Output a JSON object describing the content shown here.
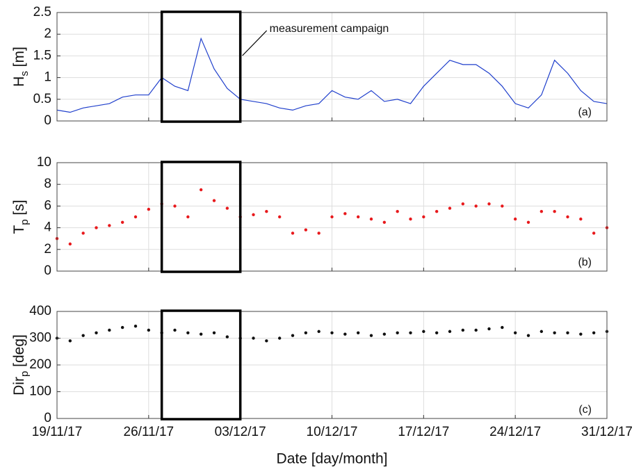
{
  "chart_data": [
    {
      "type": "line",
      "color": "#1f3fcc",
      "grid": true,
      "ylabel": [
        "H",
        "s",
        " [m]"
      ],
      "panel_label": "(a)",
      "annotation": "measurement campaign",
      "highlight": [
        "2017-11-27",
        "2017-12-03"
      ],
      "xlim": [
        "2017-11-19",
        "2017-12-31"
      ],
      "xticks": [
        "2017-11-19",
        "2017-11-26",
        "2017-12-03",
        "2017-12-10",
        "2017-12-17",
        "2017-12-24",
        "2017-12-31"
      ],
      "ylim": [
        0,
        2.5
      ],
      "yticks": [
        0,
        0.5,
        1,
        1.5,
        2,
        2.5
      ],
      "x": [
        "2017-11-19",
        "2017-11-20",
        "2017-11-21",
        "2017-11-22",
        "2017-11-23",
        "2017-11-24",
        "2017-11-25",
        "2017-11-26",
        "2017-11-27",
        "2017-11-28",
        "2017-11-29",
        "2017-11-30",
        "2017-12-01",
        "2017-12-02",
        "2017-12-03",
        "2017-12-04",
        "2017-12-05",
        "2017-12-06",
        "2017-12-07",
        "2017-12-08",
        "2017-12-09",
        "2017-12-10",
        "2017-12-11",
        "2017-12-12",
        "2017-12-13",
        "2017-12-14",
        "2017-12-15",
        "2017-12-16",
        "2017-12-17",
        "2017-12-18",
        "2017-12-19",
        "2017-12-20",
        "2017-12-21",
        "2017-12-22",
        "2017-12-23",
        "2017-12-24",
        "2017-12-25",
        "2017-12-26",
        "2017-12-27",
        "2017-12-28",
        "2017-12-29",
        "2017-12-30",
        "2017-12-31"
      ],
      "values": [
        0.25,
        0.2,
        0.3,
        0.35,
        0.4,
        0.55,
        0.6,
        0.6,
        1.0,
        0.8,
        0.7,
        1.9,
        1.2,
        0.75,
        0.5,
        0.45,
        0.4,
        0.3,
        0.25,
        0.35,
        0.4,
        0.7,
        0.55,
        0.5,
        0.7,
        0.45,
        0.5,
        0.4,
        0.8,
        1.1,
        1.4,
        1.3,
        1.3,
        1.1,
        0.8,
        0.4,
        0.3,
        0.6,
        1.4,
        1.1,
        0.7,
        0.45,
        0.4
      ]
    },
    {
      "type": "scatter",
      "color": "#e8191c",
      "grid": true,
      "ylabel": [
        "T",
        "p",
        " [s]"
      ],
      "panel_label": "(b)",
      "highlight": [
        "2017-11-27",
        "2017-12-03"
      ],
      "xlim": [
        "2017-11-19",
        "2017-12-31"
      ],
      "xticks": [
        "2017-11-19",
        "2017-11-26",
        "2017-12-03",
        "2017-12-10",
        "2017-12-17",
        "2017-12-24",
        "2017-12-31"
      ],
      "ylim": [
        0,
        10
      ],
      "yticks": [
        0,
        2,
        4,
        6,
        8,
        10
      ],
      "x": [
        "2017-11-19",
        "2017-11-20",
        "2017-11-21",
        "2017-11-22",
        "2017-11-23",
        "2017-11-24",
        "2017-11-25",
        "2017-11-26",
        "2017-11-27",
        "2017-11-28",
        "2017-11-29",
        "2017-11-30",
        "2017-12-01",
        "2017-12-02",
        "2017-12-03",
        "2017-12-04",
        "2017-12-05",
        "2017-12-06",
        "2017-12-07",
        "2017-12-08",
        "2017-12-09",
        "2017-12-10",
        "2017-12-11",
        "2017-12-12",
        "2017-12-13",
        "2017-12-14",
        "2017-12-15",
        "2017-12-16",
        "2017-12-17",
        "2017-12-18",
        "2017-12-19",
        "2017-12-20",
        "2017-12-21",
        "2017-12-22",
        "2017-12-23",
        "2017-12-24",
        "2017-12-25",
        "2017-12-26",
        "2017-12-27",
        "2017-12-28",
        "2017-12-29",
        "2017-12-30",
        "2017-12-31"
      ],
      "values": [
        3,
        2.5,
        3.5,
        4,
        4.2,
        4.5,
        5,
        5.7,
        6.2,
        6,
        5,
        7.5,
        6.5,
        5.8,
        5,
        5.2,
        5.5,
        5,
        3.5,
        3.8,
        3.5,
        5,
        5.3,
        5,
        4.8,
        4.5,
        5.5,
        4.8,
        5,
        5.5,
        5.8,
        6.2,
        6,
        6.2,
        6,
        4.8,
        4.5,
        5.5,
        5.5,
        5,
        4.8,
        3.5,
        4
      ]
    },
    {
      "type": "scatter",
      "color": "#111111",
      "grid": true,
      "ylabel": [
        "Dir",
        "p",
        " [deg]"
      ],
      "panel_label": "(c)",
      "xlabel": "Date [day/month]",
      "highlight": [
        "2017-11-27",
        "2017-12-03"
      ],
      "xlim": [
        "2017-11-19",
        "2017-12-31"
      ],
      "xticks": [
        {
          "value": "2017-11-19",
          "label": "19/11/17"
        },
        {
          "value": "2017-11-26",
          "label": "26/11/17"
        },
        {
          "value": "2017-12-03",
          "label": "03/12/17"
        },
        {
          "value": "2017-12-10",
          "label": "10/12/17"
        },
        {
          "value": "2017-12-17",
          "label": "17/12/17"
        },
        {
          "value": "2017-12-24",
          "label": "24/12/17"
        },
        {
          "value": "2017-12-31",
          "label": "31/12/17"
        }
      ],
      "ylim": [
        0,
        400
      ],
      "yticks": [
        0,
        100,
        200,
        300,
        400
      ],
      "x": [
        "2017-11-19",
        "2017-11-20",
        "2017-11-21",
        "2017-11-22",
        "2017-11-23",
        "2017-11-24",
        "2017-11-25",
        "2017-11-26",
        "2017-11-27",
        "2017-11-28",
        "2017-11-29",
        "2017-11-30",
        "2017-12-01",
        "2017-12-02",
        "2017-12-03",
        "2017-12-04",
        "2017-12-05",
        "2017-12-06",
        "2017-12-07",
        "2017-12-08",
        "2017-12-09",
        "2017-12-10",
        "2017-12-11",
        "2017-12-12",
        "2017-12-13",
        "2017-12-14",
        "2017-12-15",
        "2017-12-16",
        "2017-12-17",
        "2017-12-18",
        "2017-12-19",
        "2017-12-20",
        "2017-12-21",
        "2017-12-22",
        "2017-12-23",
        "2017-12-24",
        "2017-12-25",
        "2017-12-26",
        "2017-12-27",
        "2017-12-28",
        "2017-12-29",
        "2017-12-30",
        "2017-12-31"
      ],
      "values": [
        300,
        290,
        310,
        320,
        330,
        340,
        345,
        330,
        320,
        330,
        320,
        315,
        320,
        305,
        300,
        300,
        290,
        300,
        310,
        320,
        325,
        320,
        315,
        320,
        310,
        315,
        320,
        320,
        325,
        320,
        325,
        330,
        330,
        335,
        340,
        320,
        310,
        325,
        320,
        320,
        315,
        320,
        325
      ]
    }
  ]
}
